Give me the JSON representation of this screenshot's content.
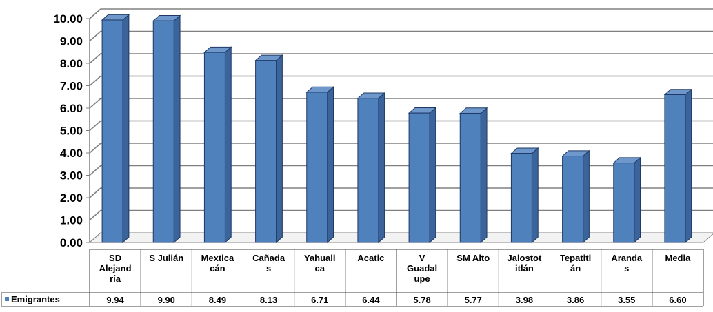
{
  "chart_data": {
    "type": "bar",
    "title": "",
    "xlabel": "",
    "ylabel": "",
    "ylim": [
      0,
      10
    ],
    "y_ticks": [
      "0.00",
      "1.00",
      "2.00",
      "3.00",
      "4.00",
      "5.00",
      "6.00",
      "7.00",
      "8.00",
      "9.00",
      "10.00"
    ],
    "grid": true,
    "style": "3d-column",
    "bar_color": "#4F81BD",
    "legend_placement": "data-table",
    "categories": [
      "SD\nAlejand\nría",
      "S Julián",
      "Mextica\ncán",
      "Cañada\ns",
      "Yahuali\nca",
      "Acatic",
      "V\nGuadal\nupe",
      "SM Alto",
      "Jalostot\nitlán",
      "Tepatitl\nán",
      "Aranda\ns",
      "Media"
    ],
    "series": [
      {
        "name": "Emigrantes",
        "values": [
          9.94,
          9.9,
          8.49,
          8.13,
          6.71,
          6.44,
          5.78,
          5.77,
          3.98,
          3.86,
          3.55,
          6.6
        ],
        "value_labels": [
          "9.94",
          "9.90",
          "8.49",
          "8.13",
          "6.71",
          "6.44",
          "5.78",
          "5.77",
          "3.98",
          "3.86",
          "3.55",
          "6.60"
        ]
      }
    ]
  }
}
